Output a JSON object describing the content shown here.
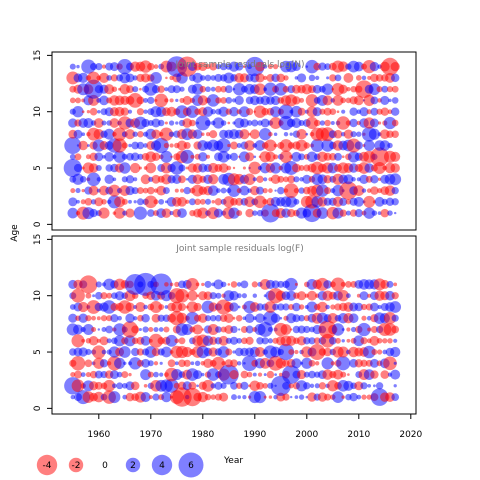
{
  "chart_data": {
    "type": "scatter",
    "subtype": "bubble",
    "colors": {
      "positive": "#0000ff",
      "negative": "#ff0000"
    },
    "fill_opacity": 0.5,
    "ylabel": "Age",
    "xlabel": "",
    "x_ticks": [
      1960,
      1970,
      1980,
      1990,
      2000,
      2010,
      2020
    ],
    "x_range": [
      1951,
      2021
    ],
    "bubble_size_meaning": "area proportional to absolute residual; blue = positive, red = negative",
    "panels": [
      {
        "title": "Joint sample residuals log(N)",
        "y_ticks": [
          0,
          5,
          10,
          15
        ],
        "y_range": [
          -0.5,
          15.3
        ],
        "years": [
          1955,
          2017
        ],
        "ages": [
          1,
          14
        ],
        "sample_residuals": [
          {
            "year": 1955,
            "age": 5,
            "value": 3.2
          },
          {
            "year": 1955,
            "age": 7,
            "value": 2.8
          },
          {
            "year": 1959,
            "age": 12,
            "value": 3.5
          },
          {
            "year": 1975,
            "age": 14,
            "value": 4.1
          },
          {
            "year": 1977,
            "age": 14,
            "value": -3.9
          },
          {
            "year": 1990,
            "age": 14,
            "value": 3.6
          },
          {
            "year": 1993,
            "age": 1,
            "value": 3.4
          },
          {
            "year": 2001,
            "age": 1,
            "value": 3.1
          },
          {
            "year": 2008,
            "age": 3,
            "value": -3.2
          },
          {
            "year": 2011,
            "age": 12,
            "value": -3.0
          },
          {
            "year": 2014,
            "age": 6,
            "value": -3.4
          },
          {
            "year": 2016,
            "age": 14,
            "value": -3.0
          }
        ]
      },
      {
        "title": "Joint sample residuals log(F)",
        "y_ticks": [
          0,
          5,
          10,
          15
        ],
        "y_range": [
          -0.5,
          15.3
        ],
        "years": [
          1955,
          2017
        ],
        "ages": [
          1,
          11
        ],
        "sample_residuals": [
          {
            "year": 1955,
            "age": 2,
            "value": 2.9
          },
          {
            "year": 1958,
            "age": 11,
            "value": -3.1
          },
          {
            "year": 1967,
            "age": 11,
            "value": 4.2
          },
          {
            "year": 1969,
            "age": 11,
            "value": 5.1
          },
          {
            "year": 1972,
            "age": 11,
            "value": 4.6
          },
          {
            "year": 1976,
            "age": 1,
            "value": -3.6
          },
          {
            "year": 1978,
            "age": 1,
            "value": -3.2
          },
          {
            "year": 1985,
            "age": 3,
            "value": 3.8
          },
          {
            "year": 1995,
            "age": 2,
            "value": 3.9
          },
          {
            "year": 1997,
            "age": 3,
            "value": 3.3
          },
          {
            "year": 2004,
            "age": 7,
            "value": -3.1
          },
          {
            "year": 2014,
            "age": 1,
            "value": 3.0
          }
        ]
      }
    ],
    "legend": {
      "entries": [
        {
          "label": "-4",
          "value": -4
        },
        {
          "label": "-2",
          "value": -2
        },
        {
          "label": "0",
          "value": 0
        },
        {
          "label": "2",
          "value": 2
        },
        {
          "label": "4",
          "value": 4
        },
        {
          "label": "6",
          "value": 6
        }
      ],
      "title": "Year",
      "placement": "bottom-left"
    }
  }
}
